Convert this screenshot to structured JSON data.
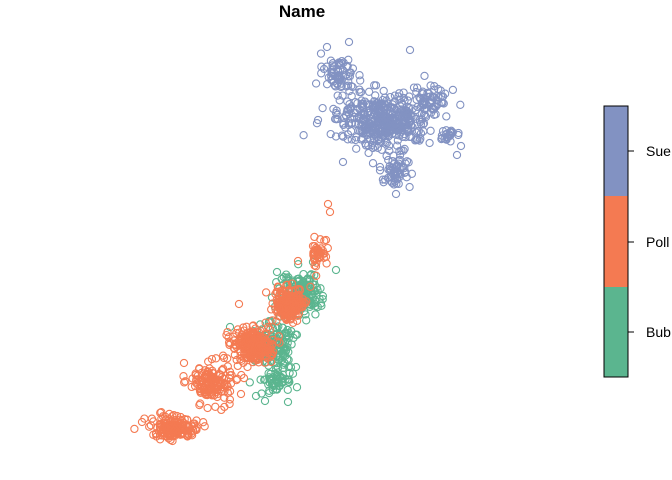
{
  "chart_data": {
    "type": "scatter",
    "title": "Name",
    "xlabel": "",
    "ylabel": "",
    "axes_visible": false,
    "grid": false,
    "marker": "open-circle",
    "legend": {
      "type": "color-bar",
      "placement": "right",
      "entries_top_to_bottom": [
        "Sue",
        "Poll",
        "Bub"
      ],
      "truncated_labels_shown": [
        "Sue",
        "Poll",
        "Bub"
      ]
    },
    "series": [
      {
        "name": "Sue",
        "color": "#8292C2",
        "clusters": [
          {
            "center": [
              383,
              120
            ],
            "spread": [
              38,
              22
            ],
            "count": 420
          },
          {
            "center": [
              340,
              75
            ],
            "spread": [
              14,
              14
            ],
            "count": 70
          },
          {
            "center": [
              430,
              100
            ],
            "spread": [
              16,
              10
            ],
            "count": 60
          },
          {
            "center": [
              395,
              170
            ],
            "spread": [
              12,
              14
            ],
            "count": 60
          },
          {
            "center": [
              448,
              135
            ],
            "spread": [
              10,
              8
            ],
            "count": 25
          }
        ],
        "points": [
          [
            327,
            47
          ],
          [
            349,
            42
          ],
          [
            410,
            50
          ],
          [
            461,
            146
          ],
          [
            457,
            155
          ],
          [
            396,
            194
          ],
          [
            318,
            120
          ],
          [
            343,
            162
          ]
        ]
      },
      {
        "name": "Poll",
        "color": "#F47A52",
        "clusters": [
          {
            "center": [
              175,
              428
            ],
            "spread": [
              18,
              9
            ],
            "count": 170
          },
          {
            "center": [
              212,
              382
            ],
            "spread": [
              18,
              16
            ],
            "count": 160
          },
          {
            "center": [
              252,
              345
            ],
            "spread": [
              16,
              14
            ],
            "count": 260
          },
          {
            "center": [
              290,
              305
            ],
            "spread": [
              12,
              14
            ],
            "count": 220
          },
          {
            "center": [
              318,
              255
            ],
            "spread": [
              6,
              14
            ],
            "count": 40
          }
        ],
        "points": [
          [
            328,
            204
          ],
          [
            330,
            212
          ],
          [
            326,
            240
          ],
          [
            239,
            304
          ],
          [
            184,
            363
          ],
          [
            142,
            422
          ],
          [
            241,
            394
          ],
          [
            298,
            261
          ]
        ]
      },
      {
        "name": "Bub",
        "color": "#5BB58F",
        "clusters": [
          {
            "center": [
              300,
              295
            ],
            "spread": [
              16,
              18
            ],
            "count": 180
          },
          {
            "center": [
              275,
              345
            ],
            "spread": [
              16,
              18
            ],
            "count": 150
          },
          {
            "center": [
              275,
              380
            ],
            "spread": [
              14,
              10
            ],
            "count": 60
          }
        ],
        "points": [
          [
            336,
            270
          ],
          [
            277,
            272
          ],
          [
            313,
            262
          ],
          [
            296,
            367
          ],
          [
            256,
            396
          ],
          [
            265,
            401
          ],
          [
            288,
            402
          ],
          [
            230,
            327
          ]
        ]
      }
    ]
  }
}
